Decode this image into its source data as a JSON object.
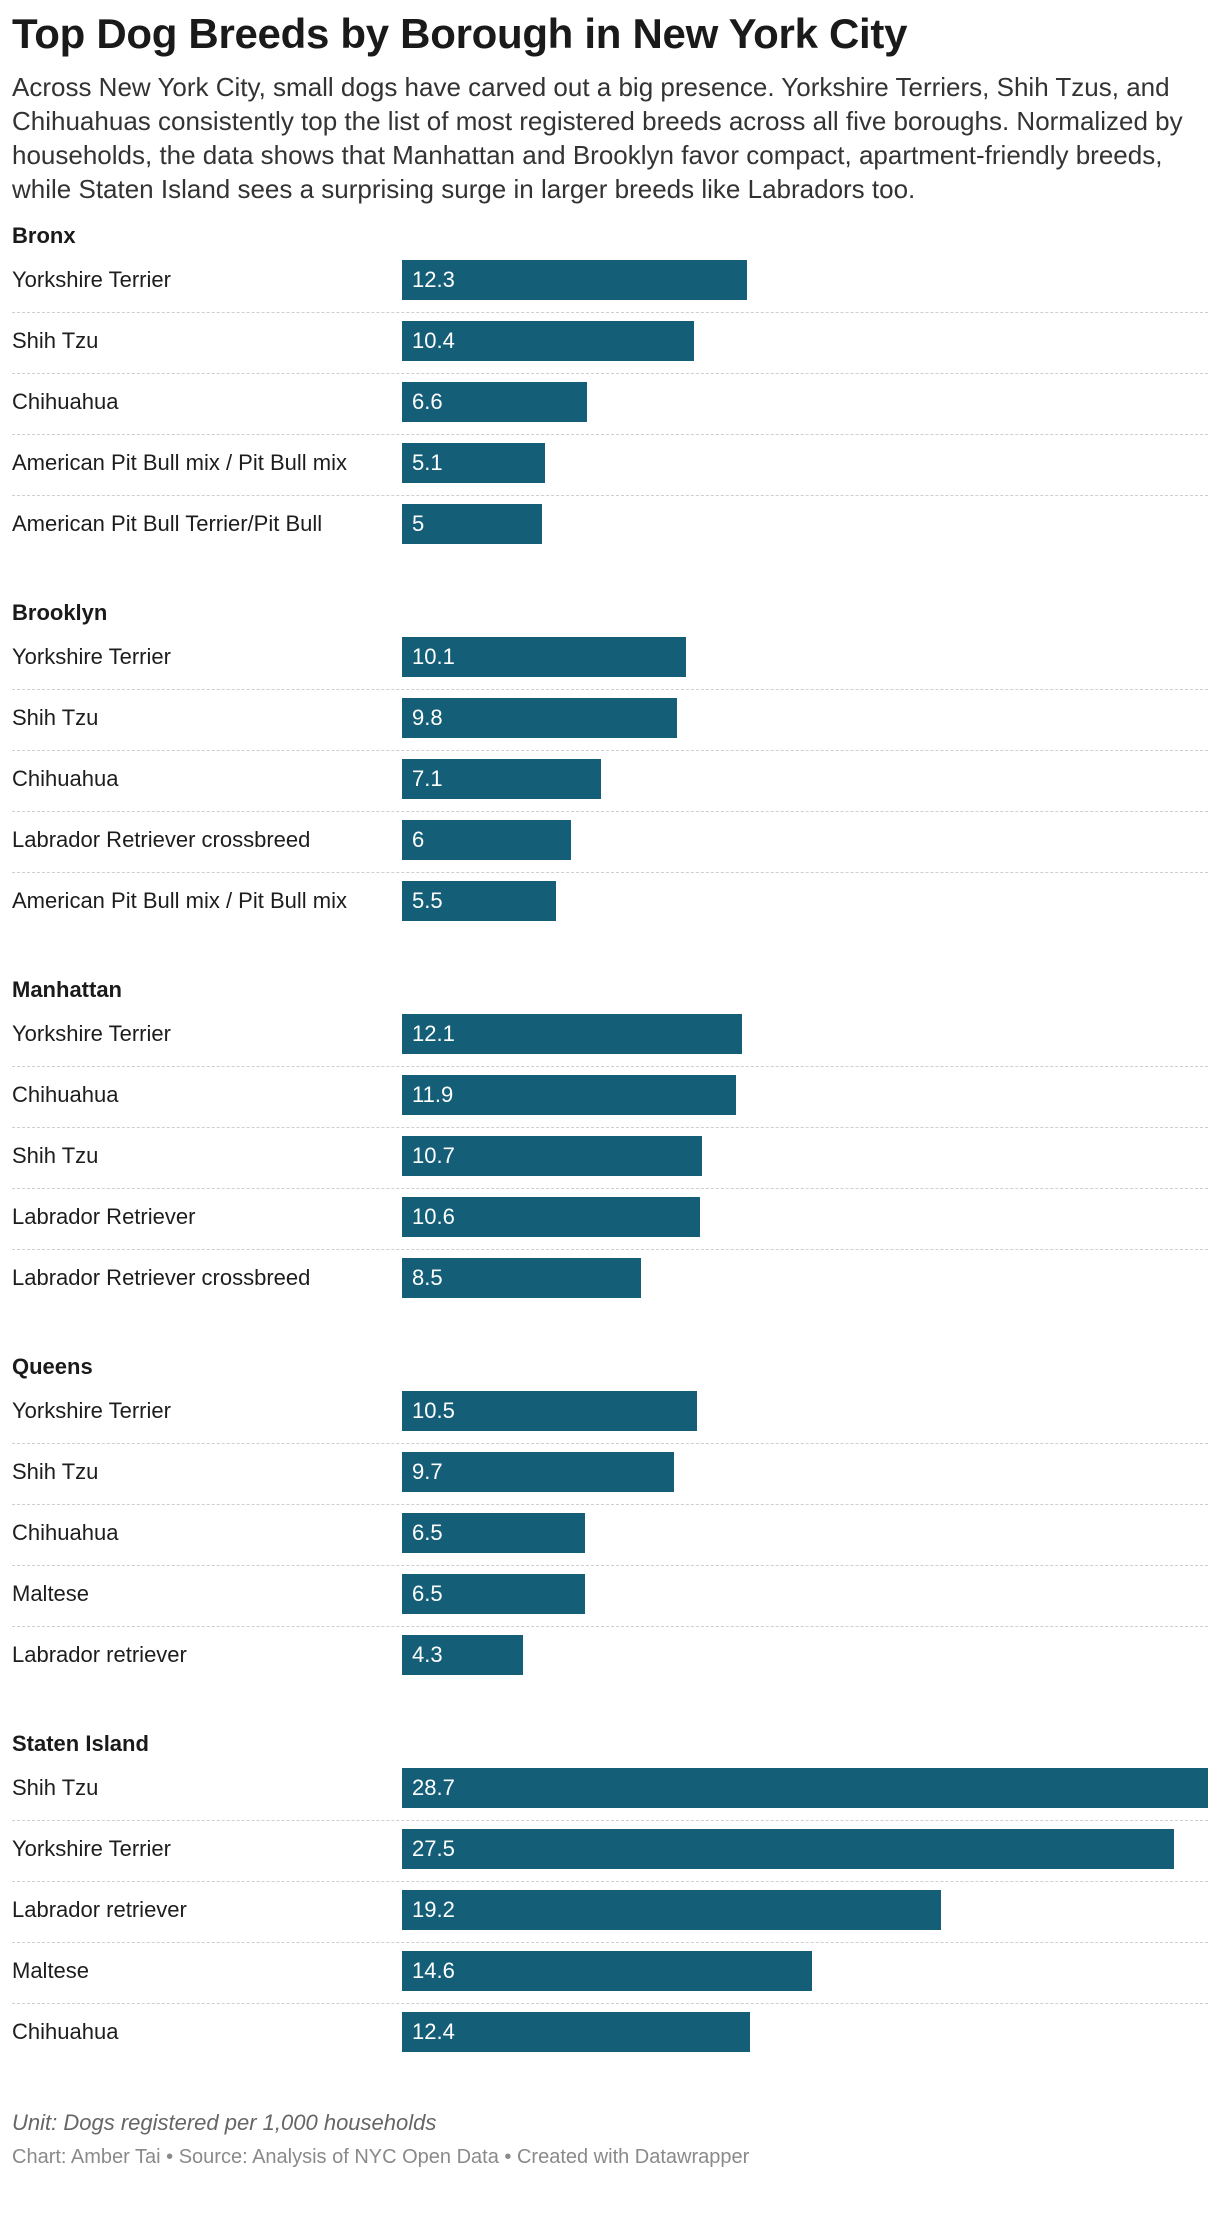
{
  "chart_data": {
    "type": "bar",
    "orientation": "horizontal",
    "title": "Top Dog Breeds by Borough in New York City",
    "subtitle": "Across New York City, small dogs have carved out a big presence. Yorkshire Terriers, Shih Tzus, and Chihuahuas consistently top the list of most registered breeds across all five boroughs. Normalized by households, the data shows that Manhattan and Brooklyn favor compact, apartment-friendly breeds, while Staten Island sees a surprising surge in larger breeds like Labradors too.",
    "xlim": [
      0,
      28.7
    ],
    "bar_color": "#155e78",
    "groups": [
      {
        "name": "Bronx",
        "categories": [
          "Yorkshire Terrier",
          "Shih Tzu",
          "Chihuahua",
          "American Pit Bull mix / Pit Bull mix",
          "American Pit Bull Terrier/Pit Bull"
        ],
        "values": [
          12.3,
          10.4,
          6.6,
          5.1,
          5
        ]
      },
      {
        "name": "Brooklyn",
        "categories": [
          "Yorkshire Terrier",
          "Shih Tzu",
          "Chihuahua",
          "Labrador Retriever crossbreed",
          "American Pit Bull mix / Pit Bull mix"
        ],
        "values": [
          10.1,
          9.8,
          7.1,
          6,
          5.5
        ]
      },
      {
        "name": "Manhattan",
        "categories": [
          "Yorkshire Terrier",
          "Chihuahua",
          "Shih Tzu",
          "Labrador Retriever",
          "Labrador Retriever crossbreed"
        ],
        "values": [
          12.1,
          11.9,
          10.7,
          10.6,
          8.5
        ]
      },
      {
        "name": "Queens",
        "categories": [
          "Yorkshire Terrier",
          "Shih Tzu",
          "Chihuahua",
          "Maltese",
          "Labrador retriever"
        ],
        "values": [
          10.5,
          9.7,
          6.5,
          6.5,
          4.3
        ]
      },
      {
        "name": "Staten Island",
        "categories": [
          "Shih Tzu",
          "Yorkshire Terrier",
          "Labrador retriever",
          "Maltese",
          "Chihuahua"
        ],
        "values": [
          28.7,
          27.5,
          19.2,
          14.6,
          12.4
        ]
      }
    ]
  },
  "footer": {
    "unit": "Unit: Dogs registered per 1,000 households",
    "credit": "Chart: Amber Tai • Source: Analysis of NYC Open Data • Created with Datawrapper"
  }
}
